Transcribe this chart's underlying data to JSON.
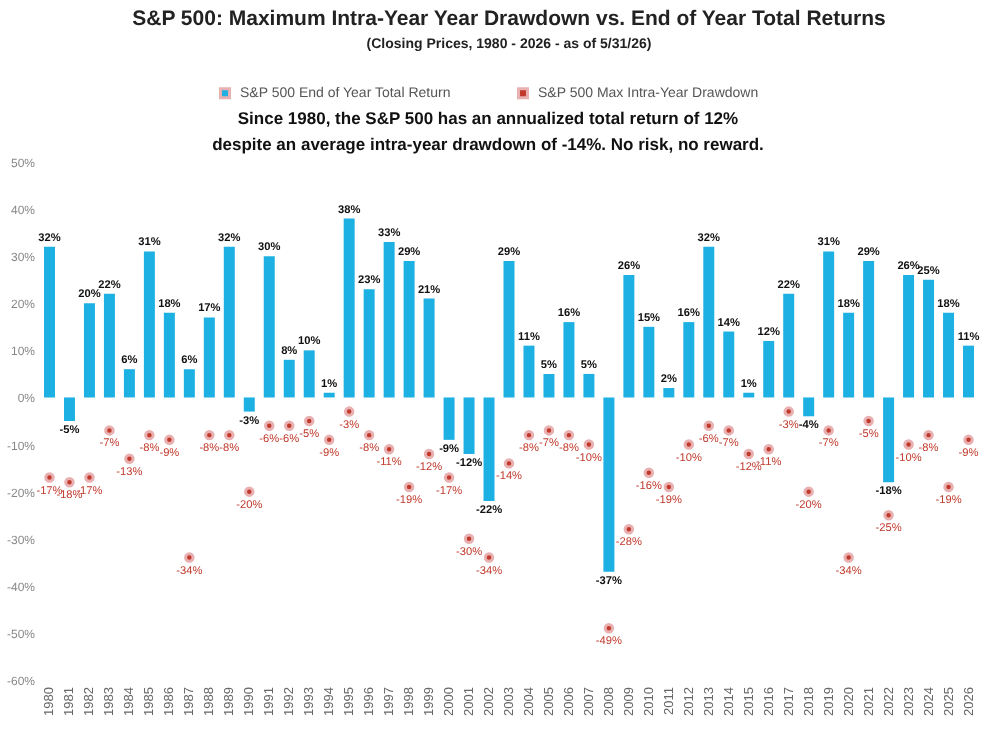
{
  "chart_data": {
    "type": "bar",
    "title": "S&P 500: Maximum Intra-Year Year Drawdown vs. End of Year Total Returns",
    "subtitle": "(Closing Prices, 1980 - 2026 - as of 5/31/26)",
    "annotations": [
      "Since 1980, the S&P 500 has an annualized total return of 12%",
      "despite an average intra-year drawdown of -14%. No risk, no reward."
    ],
    "categories": [
      "1980",
      "1981",
      "1982",
      "1983",
      "1984",
      "1985",
      "1986",
      "1987",
      "1988",
      "1989",
      "1990",
      "1991",
      "1992",
      "1993",
      "1994",
      "1995",
      "1996",
      "1997",
      "1998",
      "1999",
      "2000",
      "2001",
      "2002",
      "2003",
      "2004",
      "2005",
      "2006",
      "2007",
      "2008",
      "2009",
      "2010",
      "2011",
      "2012",
      "2013",
      "2014",
      "2015",
      "2016",
      "2017",
      "2018",
      "2019",
      "2020",
      "2021",
      "2022",
      "2023",
      "2024",
      "2025",
      "2026"
    ],
    "series": [
      {
        "name": "S&P 500 End of Year Total Return",
        "color": "#1cb0e3",
        "values": [
          32,
          -5,
          20,
          22,
          6,
          31,
          18,
          6,
          17,
          32,
          -3,
          30,
          8,
          10,
          1,
          38,
          23,
          33,
          29,
          21,
          -9,
          -12,
          -22,
          29,
          11,
          5,
          16,
          5,
          -37,
          26,
          15,
          2,
          16,
          32,
          14,
          1,
          12,
          22,
          -4,
          31,
          18,
          29,
          -18,
          26,
          25,
          18,
          11
        ],
        "value_labels": [
          "32%",
          "-5%",
          "20%",
          "22%",
          "6%",
          "31%",
          "18%",
          "6%",
          "17%",
          "32%",
          "-3%",
          "30%",
          "8%",
          "10%",
          "1%",
          "38%",
          "23%",
          "33%",
          "29%",
          "21%",
          "-9%",
          "-12%",
          "-22%",
          "29%",
          "11%",
          "5%",
          "16%",
          "5%",
          "-37%",
          "26%",
          "15%",
          "2%",
          "16%",
          "32%",
          "14%",
          "1%",
          "12%",
          "22%",
          "-4%",
          "31%",
          "18%",
          "29%",
          "-18%",
          "26%",
          "25%",
          "18%",
          "11%"
        ]
      },
      {
        "name": "S&P 500 Max Intra-Year Drawdown",
        "type": "scatter",
        "color": "#c0392b",
        "values": [
          -17,
          -18,
          -17,
          -7,
          -13,
          -8,
          -9,
          -34,
          -8,
          -8,
          -20,
          -6,
          -6,
          -5,
          -9,
          -3,
          -8,
          -11,
          -19,
          -12,
          -17,
          -30,
          -34,
          -14,
          -8,
          -7,
          -8,
          -10,
          -49,
          -28,
          -16,
          -19,
          -10,
          -6,
          -7,
          -12,
          -11,
          -3,
          -20,
          -7,
          -34,
          -5,
          -25,
          -10,
          -8,
          -19,
          -9
        ],
        "value_labels": [
          "-17%",
          "-18%",
          "-17%",
          "-7%",
          "-13%",
          "-8%",
          "-9%",
          "-34%",
          "-8%",
          "-8%",
          "-20%",
          "-6%",
          "-6%",
          "-5%",
          "-9%",
          "-3%",
          "-8%",
          "-11%",
          "-19%",
          "-12%",
          "-17%",
          "-30%",
          "-34%",
          "-14%",
          "-8%",
          "-7%",
          "-8%",
          "-10%",
          "-49%",
          "-28%",
          "-16%",
          "-19%",
          "-10%",
          "-6%",
          "-7%",
          "-12%",
          "-11%",
          "-3%",
          "-20%",
          "-7%",
          "-34%",
          "-5%",
          "-25%",
          "-10%",
          "-8%",
          "-19%",
          "-9%"
        ]
      }
    ],
    "ylim": [
      -60,
      50
    ],
    "yticks": [
      {
        "value": -60,
        "label": "-60%"
      },
      {
        "value": -50,
        "label": "-50%"
      },
      {
        "value": -40,
        "label": "-40%"
      },
      {
        "value": -30,
        "label": "-30%"
      },
      {
        "value": -20,
        "label": "-20%"
      },
      {
        "value": -10,
        "label": "-10%"
      },
      {
        "value": 0,
        "label": "0%"
      },
      {
        "value": 10,
        "label": "10%"
      },
      {
        "value": 20,
        "label": "20%"
      },
      {
        "value": 30,
        "label": "30%"
      },
      {
        "value": 40,
        "label": "40%"
      },
      {
        "value": 50,
        "label": "50%"
      }
    ],
    "legend": "top",
    "marker": "circle"
  }
}
